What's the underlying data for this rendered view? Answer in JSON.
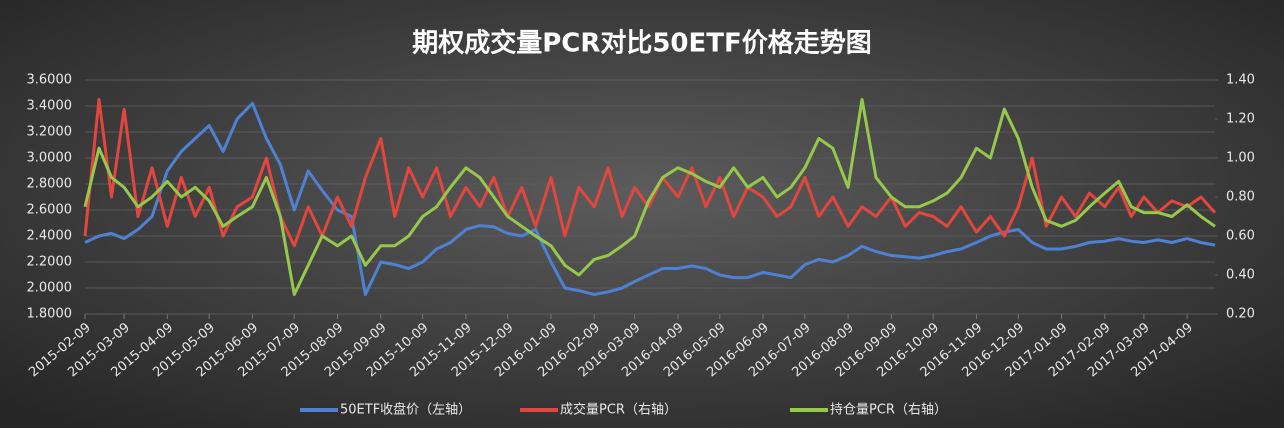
{
  "chart_data": {
    "type": "line",
    "title": "期权成交量PCR对比50ETF价格走势图",
    "x": [
      "2015-02-09",
      "2015-02-19",
      "2015-02-28",
      "2015-03-09",
      "2015-03-19",
      "2015-03-29",
      "2015-04-09",
      "2015-04-19",
      "2015-04-29",
      "2015-05-09",
      "2015-05-19",
      "2015-05-29",
      "2015-06-09",
      "2015-06-19",
      "2015-06-29",
      "2015-07-09",
      "2015-07-19",
      "2015-07-29",
      "2015-08-09",
      "2015-08-19",
      "2015-08-29",
      "2015-09-09",
      "2015-09-19",
      "2015-09-29",
      "2015-10-09",
      "2015-10-19",
      "2015-10-29",
      "2015-11-09",
      "2015-11-19",
      "2015-11-29",
      "2015-12-09",
      "2015-12-19",
      "2015-12-29",
      "2016-01-09",
      "2016-01-19",
      "2016-01-29",
      "2016-02-09",
      "2016-02-19",
      "2016-02-29",
      "2016-03-09",
      "2016-03-19",
      "2016-03-29",
      "2016-04-09",
      "2016-04-19",
      "2016-04-29",
      "2016-05-09",
      "2016-05-19",
      "2016-05-29",
      "2016-06-09",
      "2016-06-19",
      "2016-06-29",
      "2016-07-09",
      "2016-07-19",
      "2016-07-29",
      "2016-08-09",
      "2016-08-19",
      "2016-08-29",
      "2016-09-09",
      "2016-09-19",
      "2016-09-29",
      "2016-10-09",
      "2016-10-19",
      "2016-10-29",
      "2016-11-09",
      "2016-11-19",
      "2016-11-29",
      "2016-12-09",
      "2016-12-19",
      "2016-12-29",
      "2017-01-09",
      "2017-01-19",
      "2017-01-29",
      "2017-02-09",
      "2017-02-19",
      "2017-02-28",
      "2017-03-09",
      "2017-03-19",
      "2017-03-29",
      "2017-04-09",
      "2017-04-19",
      "2017-04-29"
    ],
    "xlim": [
      "2015-02-09",
      "2017-04-29"
    ],
    "xticks": [
      "2015-02-09",
      "2015-03-09",
      "2015-04-09",
      "2015-05-09",
      "2015-06-09",
      "2015-07-09",
      "2015-08-09",
      "2015-09-09",
      "2015-10-09",
      "2015-11-09",
      "2015-12-09",
      "2016-01-09",
      "2016-02-09",
      "2016-03-09",
      "2016-04-09",
      "2016-05-09",
      "2016-06-09",
      "2016-07-09",
      "2016-08-09",
      "2016-09-09",
      "2016-10-09",
      "2016-11-09",
      "2016-12-09",
      "2017-01-09",
      "2017-02-09",
      "2017-03-09",
      "2017-04-09"
    ],
    "ylim": [
      1.8,
      3.6
    ],
    "yticks": [
      {
        "value": 1.8,
        "label": "1.8000"
      },
      {
        "value": 2.0,
        "label": "2.0000"
      },
      {
        "value": 2.2,
        "label": "2.2000"
      },
      {
        "value": 2.4,
        "label": "2.4000"
      },
      {
        "value": 2.6,
        "label": "2.6000"
      },
      {
        "value": 2.8,
        "label": "2.8000"
      },
      {
        "value": 3.0,
        "label": "3.0000"
      },
      {
        "value": 3.2,
        "label": "3.2000"
      },
      {
        "value": 3.4,
        "label": "3.4000"
      },
      {
        "value": 3.6,
        "label": "3.6000"
      }
    ],
    "y2lim": [
      0.2,
      1.4
    ],
    "y2ticks": [
      {
        "value": 0.2,
        "label": "0.20"
      },
      {
        "value": 0.4,
        "label": "0.40"
      },
      {
        "value": 0.6,
        "label": "0.60"
      },
      {
        "value": 0.8,
        "label": "0.80"
      },
      {
        "value": 1.0,
        "label": "1.00"
      },
      {
        "value": 1.2,
        "label": "1.20"
      },
      {
        "value": 1.4,
        "label": "1.40"
      }
    ],
    "grid": true,
    "legend": "bottom",
    "series": [
      {
        "name": "50ETF收盘价（左轴）",
        "color": "#4f81d2",
        "values": [
          2.35,
          2.4,
          2.42,
          2.38,
          2.45,
          2.55,
          2.9,
          3.05,
          3.15,
          3.25,
          3.05,
          3.3,
          3.42,
          3.15,
          2.95,
          2.6,
          2.9,
          2.75,
          2.6,
          2.55,
          1.95,
          2.2,
          2.18,
          2.15,
          2.2,
          2.3,
          2.35,
          2.45,
          2.48,
          2.47,
          2.42,
          2.4,
          2.45,
          2.2,
          2.0,
          1.98,
          1.95,
          1.97,
          2.0,
          2.05,
          2.1,
          2.15,
          2.15,
          2.17,
          2.15,
          2.1,
          2.08,
          2.08,
          2.12,
          2.1,
          2.08,
          2.18,
          2.22,
          2.2,
          2.25,
          2.32,
          2.28,
          2.25,
          2.24,
          2.23,
          2.25,
          2.28,
          2.3,
          2.35,
          2.4,
          2.43,
          2.45,
          2.35,
          2.3,
          2.3,
          2.32,
          2.35,
          2.36,
          2.38,
          2.36,
          2.35,
          2.37,
          2.35,
          2.38,
          2.35,
          2.33
        ]
      },
      {
        "name": "成交量PCR（右轴）",
        "color": "#e2463e",
        "axis": "y2",
        "values": [
          0.6,
          1.3,
          0.8,
          1.25,
          0.7,
          0.95,
          0.65,
          0.9,
          0.7,
          0.85,
          0.6,
          0.75,
          0.8,
          1.0,
          0.7,
          0.55,
          0.75,
          0.6,
          0.8,
          0.65,
          0.9,
          1.1,
          0.7,
          0.95,
          0.8,
          0.95,
          0.7,
          0.85,
          0.75,
          0.9,
          0.7,
          0.85,
          0.65,
          0.9,
          0.6,
          0.85,
          0.75,
          0.95,
          0.7,
          0.85,
          0.75,
          0.9,
          0.8,
          0.95,
          0.75,
          0.9,
          0.7,
          0.85,
          0.8,
          0.7,
          0.75,
          0.9,
          0.7,
          0.8,
          0.65,
          0.75,
          0.7,
          0.8,
          0.65,
          0.72,
          0.7,
          0.65,
          0.75,
          0.62,
          0.7,
          0.6,
          0.75,
          1.0,
          0.65,
          0.8,
          0.7,
          0.82,
          0.75,
          0.85,
          0.7,
          0.8,
          0.72,
          0.78,
          0.75,
          0.8,
          0.72
        ]
      },
      {
        "name": "持仓量PCR（右轴）",
        "color": "#95c84b",
        "axis": "y2",
        "values": [
          0.75,
          1.05,
          0.9,
          0.85,
          0.75,
          0.8,
          0.88,
          0.8,
          0.85,
          0.78,
          0.65,
          0.7,
          0.75,
          0.9,
          0.7,
          0.3,
          0.45,
          0.6,
          0.55,
          0.6,
          0.45,
          0.55,
          0.55,
          0.6,
          0.7,
          0.75,
          0.85,
          0.95,
          0.9,
          0.8,
          0.7,
          0.65,
          0.6,
          0.55,
          0.45,
          0.4,
          0.48,
          0.5,
          0.55,
          0.6,
          0.78,
          0.9,
          0.95,
          0.92,
          0.88,
          0.85,
          0.95,
          0.85,
          0.9,
          0.8,
          0.85,
          0.95,
          1.1,
          1.05,
          0.85,
          1.3,
          0.9,
          0.8,
          0.75,
          0.75,
          0.78,
          0.82,
          0.9,
          1.05,
          1.0,
          1.25,
          1.1,
          0.85,
          0.68,
          0.65,
          0.68,
          0.75,
          0.82,
          0.88,
          0.75,
          0.72,
          0.72,
          0.7,
          0.76,
          0.7,
          0.65
        ]
      }
    ]
  }
}
